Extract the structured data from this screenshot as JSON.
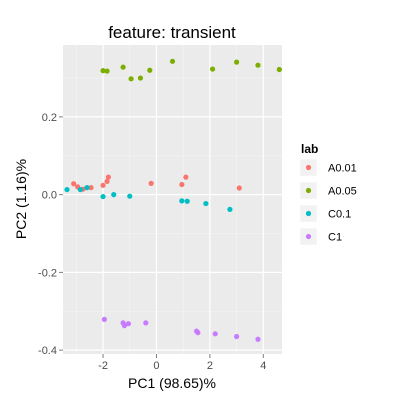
{
  "chart_data": {
    "type": "scatter",
    "title": "feature: transient",
    "xlabel": "PC1 (98.65)%",
    "ylabel": "PC2 (1.16)%",
    "xlim": [
      -3.5,
      4.7
    ],
    "ylim": [
      -0.41,
      0.385
    ],
    "x_ticks": [
      -2,
      0,
      2,
      4
    ],
    "x_tick_labels": [
      "-2",
      "0",
      "2",
      "4"
    ],
    "y_ticks": [
      -0.4,
      -0.2,
      0.0,
      0.2
    ],
    "y_tick_labels": [
      "-0.4",
      "-0.2",
      "0.0",
      "0.2"
    ],
    "grid": true,
    "legend": {
      "title": "lab",
      "placement": "right"
    },
    "series": [
      {
        "name": "A0.01",
        "color": "#F8766D",
        "points": [
          [
            -3.1,
            0.028
          ],
          [
            -2.95,
            0.02
          ],
          [
            -2.75,
            0.014
          ],
          [
            -2.45,
            0.018
          ],
          [
            -2.0,
            0.024
          ],
          [
            -1.85,
            0.034
          ],
          [
            -1.8,
            0.045
          ],
          [
            -0.2,
            0.029
          ],
          [
            0.95,
            0.026
          ],
          [
            1.1,
            0.045
          ],
          [
            3.1,
            0.017
          ]
        ]
      },
      {
        "name": "A0.05",
        "color": "#7CAE00",
        "points": [
          [
            -2.0,
            0.319
          ],
          [
            -1.85,
            0.318
          ],
          [
            -1.25,
            0.328
          ],
          [
            -0.95,
            0.298
          ],
          [
            -0.6,
            0.3
          ],
          [
            -0.25,
            0.32
          ],
          [
            0.6,
            0.343
          ],
          [
            2.1,
            0.323
          ],
          [
            3.0,
            0.341
          ],
          [
            3.8,
            0.333
          ],
          [
            4.6,
            0.322
          ]
        ]
      },
      {
        "name": "C0.1",
        "color": "#00BFC4",
        "points": [
          [
            -3.35,
            0.013
          ],
          [
            -2.85,
            0.013
          ],
          [
            -2.6,
            0.018
          ],
          [
            -2.0,
            -0.005
          ],
          [
            -1.6,
            0.0
          ],
          [
            -1.0,
            -0.004
          ],
          [
            0.95,
            -0.016
          ],
          [
            1.15,
            -0.017
          ],
          [
            1.85,
            -0.023
          ],
          [
            2.75,
            -0.038
          ]
        ]
      },
      {
        "name": "C1",
        "color": "#C77CFF",
        "points": [
          [
            -1.95,
            -0.321
          ],
          [
            -1.25,
            -0.33
          ],
          [
            -1.2,
            -0.337
          ],
          [
            -1.05,
            -0.332
          ],
          [
            -0.4,
            -0.33
          ],
          [
            1.5,
            -0.351
          ],
          [
            1.55,
            -0.355
          ],
          [
            2.2,
            -0.358
          ],
          [
            3.0,
            -0.365
          ],
          [
            3.8,
            -0.372
          ]
        ]
      }
    ]
  }
}
